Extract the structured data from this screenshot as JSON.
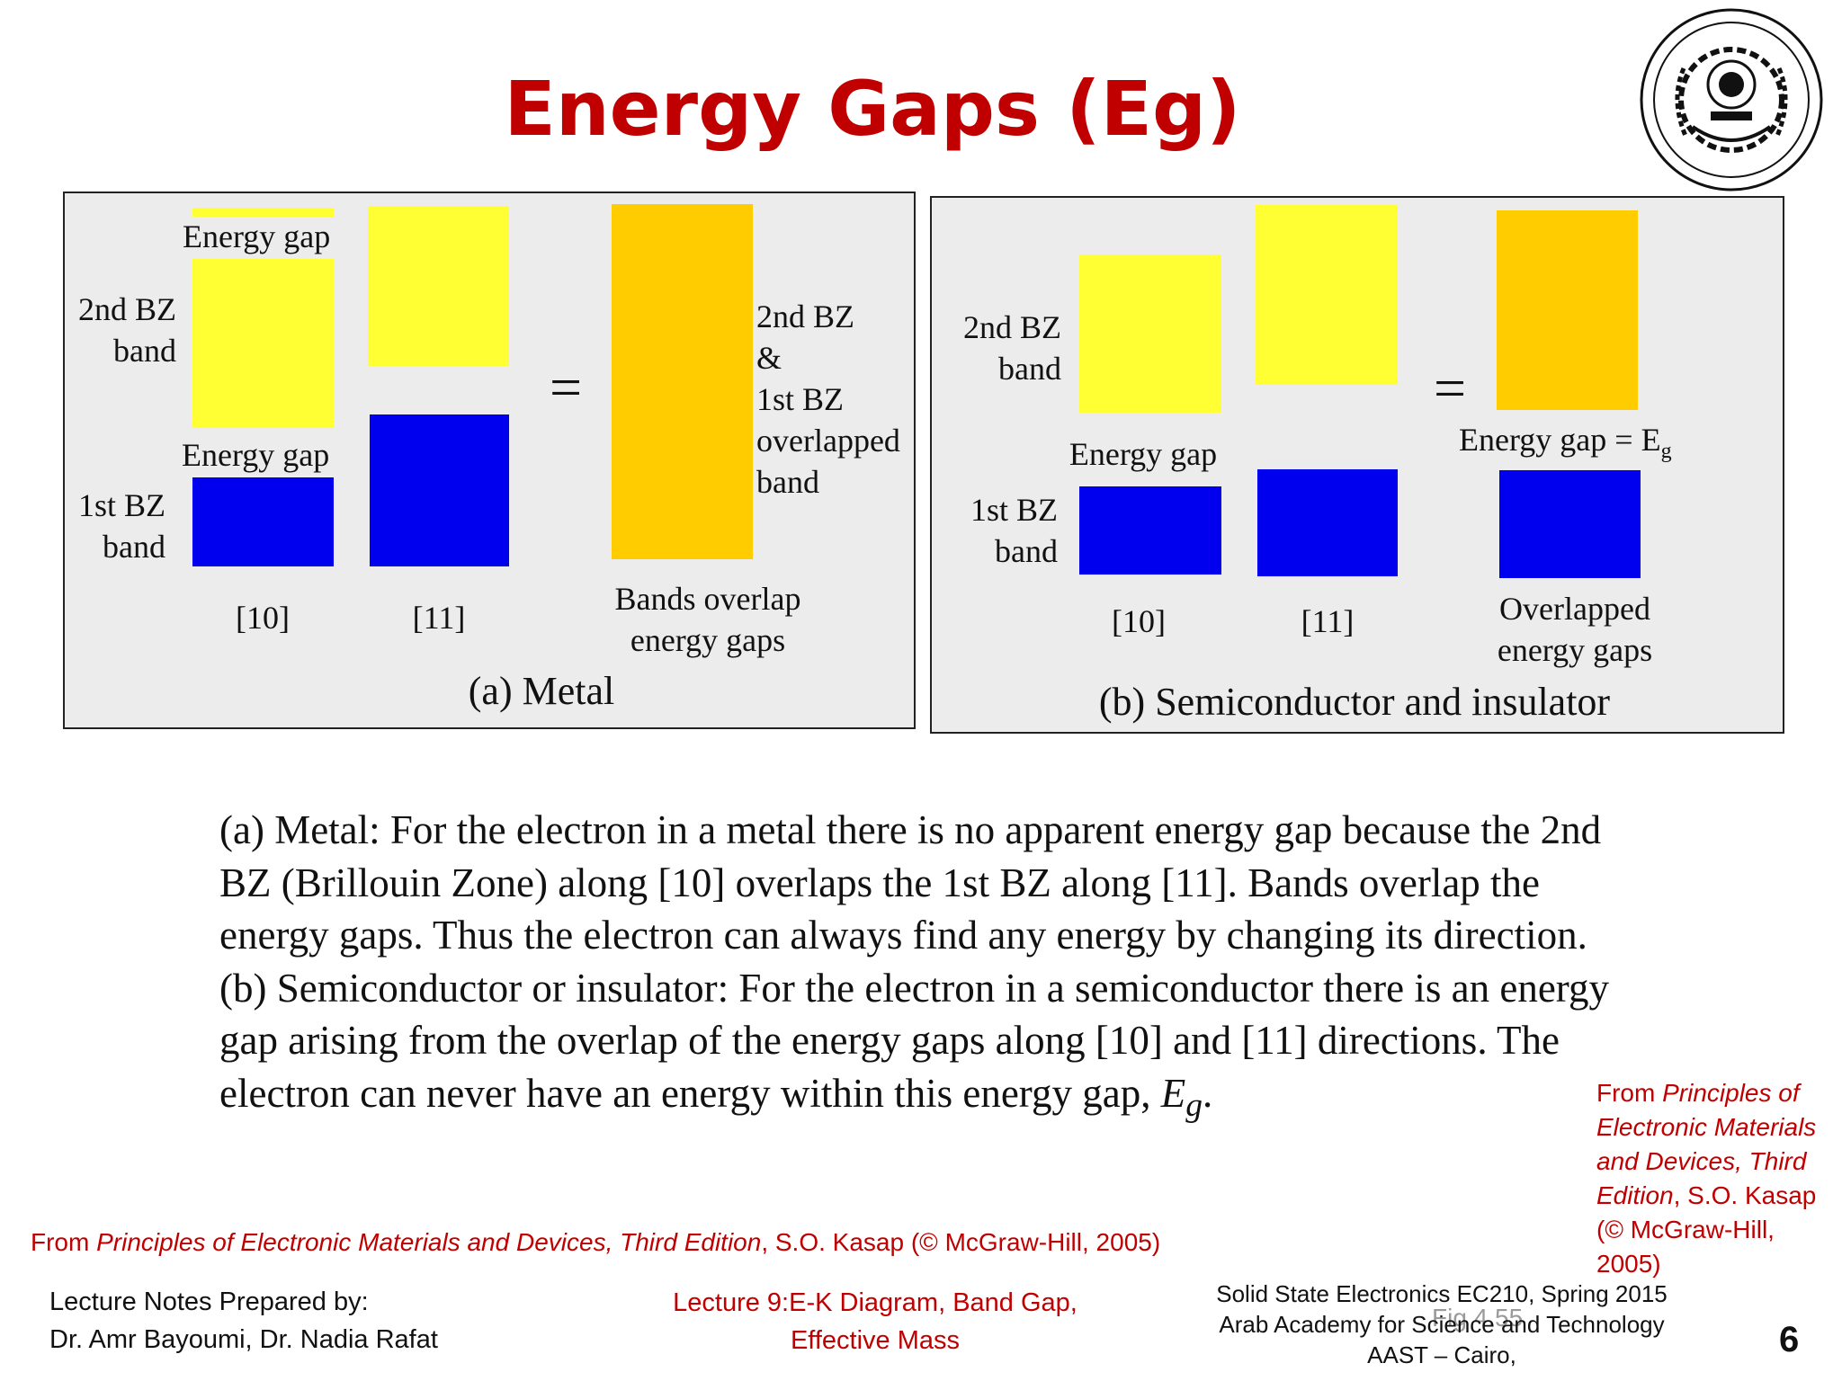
{
  "slide": {
    "title": "Energy Gaps (Eg)",
    "page_number": "6"
  },
  "figure": {
    "metal": {
      "energy_gap_top": "Energy gap",
      "band2_l1": "2nd BZ",
      "band2_l2": "band",
      "energy_gap_mid": "Energy gap",
      "band1_l1": "1st BZ",
      "band1_l2": "band",
      "dir_10": "[10]",
      "dir_11": "[11]",
      "equals": "=",
      "overlap_l1": "2nd BZ",
      "overlap_l2": "&",
      "overlap_l3": "1st BZ",
      "overlap_l4": "overlapped",
      "overlap_l5": "band",
      "result_l1": "Bands overlap",
      "result_l2": "energy gaps",
      "caption": "(a) Metal"
    },
    "semiconductor": {
      "band2_l1": "2nd BZ",
      "band2_l2": "band",
      "energy_gap": "Energy gap",
      "band1_l1": "1st BZ",
      "band1_l2": "band",
      "dir_10": "[10]",
      "dir_11": "[11]",
      "equals": "=",
      "eg_label": "Energy gap = E",
      "eg_sub": "g",
      "result_l1": "Overlapped",
      "result_l2": "energy gaps",
      "caption": "(b) Semiconductor and insulator"
    },
    "fig_label": "Fig 4.55",
    "colors": {
      "yellow": "#ffff33",
      "orange": "#ffcc00",
      "blue": "#0000ee",
      "panel": "#ececec"
    }
  },
  "body": {
    "para_a": "(a) Metal: For the electron in a metal there is no apparent energy gap because the 2nd BZ (Brillouin Zone) along [10] overlaps the 1st BZ along [11]. Bands overlap the energy gaps. Thus the electron can always find any energy by changing its direction.",
    "para_b_start": "(b) Semiconductor or insulator: For the electron in a semiconductor there is an energy gap arising from the overlap of the energy gaps along [10] and [11] directions. The electron can never have an energy within this energy gap, ",
    "para_b_eg": "E",
    "para_b_sub": "g",
    "para_b_end": "."
  },
  "citation_bottom": {
    "prefix": "From ",
    "italic": "Principles of Electronic Materials and Devices, Third Edition",
    "suffix": ", S.O. Kasap (© McGraw-Hill, 2005)"
  },
  "citation_side": {
    "prefix": "From ",
    "italic": "Principles of Electronic Materials and Devices, Third Edition",
    "suffix": ", S.O. Kasap (© McGraw-Hill, 2005)"
  },
  "footer": {
    "left_l1": "Lecture Notes Prepared by:",
    "left_l2": "Dr. Amr Bayoumi, Dr. Nadia Rafat",
    "center_l1": "Lecture 9:E-K Diagram,  Band Gap,",
    "center_l2": "Effective Mass",
    "right_l1": "Solid State Electronics EC210, Spring 2015",
    "right_l2": "Arab Academy for Science and Technology",
    "right_l3": "AAST – Cairo,"
  }
}
